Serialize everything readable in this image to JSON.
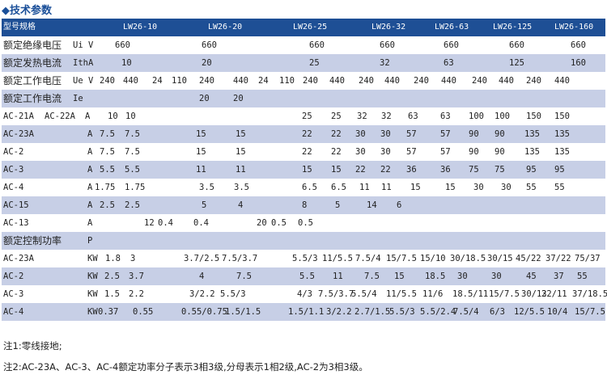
{
  "title": "◆技术参数",
  "rows": [
    {
      "cells": [
        "型号规格",
        "LW26-10",
        "LW26-20",
        "LW26-25",
        "LW26-32",
        "LW26-63",
        "LW26-125",
        "LW26-160"
      ]
    },
    {
      "cells": [
        "额定绝缘电压",
        "Ui V",
        "660",
        "660",
        "660",
        "660",
        "660",
        "660",
        "660"
      ]
    },
    {
      "cells": [
        "额定发热电流",
        "IthA",
        "10",
        "20",
        "25",
        "32",
        "63",
        "125",
        "160"
      ]
    },
    {
      "cells": [
        "额定工作电压",
        "Ue V",
        "240",
        "440",
        "24",
        "110",
        "240",
        "440",
        "24",
        "110",
        "240",
        "440",
        "240",
        "440",
        "240",
        "440",
        "240",
        "440",
        "240",
        "440"
      ]
    },
    {
      "cells": [
        "额定工作电流",
        "Ie",
        "20",
        "20"
      ]
    },
    {
      "cells": [
        "AC-21A",
        "AC-22A",
        "A",
        "10",
        "10",
        "25",
        "25",
        "32",
        "32",
        "63",
        "63",
        "100",
        "100",
        "150",
        "150"
      ]
    },
    {
      "cells": [
        "AC-23A",
        "A",
        "7.5",
        "7.5",
        "15",
        "15",
        "22",
        "22",
        "30",
        "30",
        "57",
        "57",
        "90",
        "90",
        "135",
        "135"
      ]
    },
    {
      "cells": [
        "AC-2",
        "A",
        "7.5",
        "7.5",
        "15",
        "15",
        "22",
        "22",
        "30",
        "30",
        "57",
        "57",
        "90",
        "90",
        "135",
        "135"
      ]
    },
    {
      "cells": [
        "AC-3",
        "A",
        "5.5",
        "5.5",
        "11",
        "11",
        "15",
        "15",
        "22",
        "22",
        "36",
        "36",
        "75",
        "75",
        "95",
        "95"
      ]
    },
    {
      "cells": [
        "AC-4",
        "A",
        "1.75",
        "1.75",
        "3.5",
        "3.5",
        "6.5",
        "6.5",
        "11",
        "11",
        "15",
        "15",
        "30",
        "30",
        "55",
        "55"
      ]
    },
    {
      "cells": [
        "AC-15",
        "A",
        "2.5",
        "2.5",
        "5",
        "4",
        "8",
        "5",
        "14",
        "6"
      ]
    },
    {
      "cells": [
        "AC-13",
        "A",
        "12",
        "0.4",
        "0.4",
        "20",
        "0.5",
        "0.5"
      ]
    },
    {
      "cells": [
        "额定控制功率",
        "P"
      ]
    },
    {
      "cells": [
        "AC-23A",
        "KW",
        "1.8",
        "3",
        "3.7/2.5",
        "7.5/3.7",
        "5.5/3",
        "11/5.5",
        "7.5/4",
        "15/7.5",
        "15/10",
        "30/18.5",
        "30/15",
        "45/22",
        "37/22",
        "75/37"
      ]
    },
    {
      "cells": [
        "AC-2",
        "KW",
        "2.5",
        "3.7",
        "4",
        "7.5",
        "5.5",
        "11",
        "7.5",
        "15",
        "18.5",
        "30",
        "30",
        "45",
        "37",
        "55"
      ]
    },
    {
      "cells": [
        "AC-3",
        "KW",
        "1.5",
        "2.2",
        "3/2.2",
        "5.5/3",
        "4/3",
        "7.5/3.7",
        "5.5/4",
        "11/5.5",
        "11/6",
        "18.5/11",
        "15/7.5",
        "30/13",
        "22/11",
        "37/18.5"
      ]
    },
    {
      "cells": [
        "AC-4",
        "KW",
        "0.37",
        "0.55",
        "0.55/0.75",
        "1.5/1.5",
        "1.5/1.1",
        "3/2.2",
        "2.7/1.5",
        "5.5/3",
        "5.5/2.4",
        "7.5/4",
        "6/3",
        "12/5.5",
        "10/4",
        "15/7.5"
      ]
    }
  ],
  "notes": [
    "注1:零线接地;",
    "注2:AC-23A、AC-3、AC-4额定功率分子表示3相3级,分母表示1相2级,AC-2为3相3级。"
  ]
}
